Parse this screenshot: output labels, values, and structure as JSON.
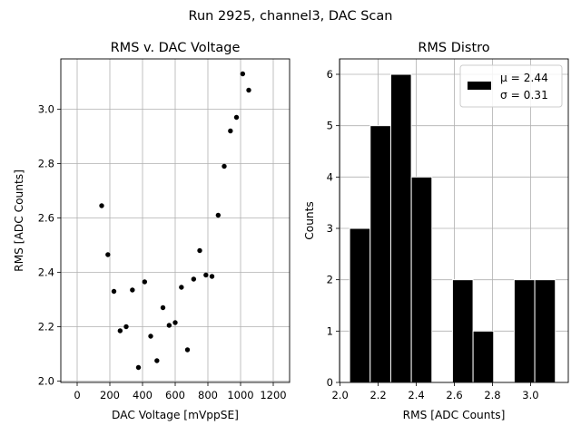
{
  "figure": {
    "suptitle": "Run 2925, channel3, DAC Scan"
  },
  "chart_data": [
    {
      "type": "scatter",
      "title": "RMS v. DAC Voltage",
      "xlabel": "DAC Voltage [mVppSE]",
      "ylabel": "RMS [ADC Counts]",
      "xlim": [
        -100,
        1300
      ],
      "ylim": [
        1.995,
        3.185
      ],
      "xticks": [
        0,
        200,
        400,
        600,
        800,
        1000,
        1200
      ],
      "yticks": [
        2.0,
        2.2,
        2.4,
        2.6,
        2.8,
        3.0
      ],
      "xtick_labels": [
        "0",
        "200",
        "400",
        "600",
        "800",
        "1000",
        "1200"
      ],
      "ytick_labels": [
        "2.0",
        "2.2",
        "2.4",
        "2.6",
        "2.8",
        "3.0"
      ],
      "grid": true,
      "marker_color": "#000000",
      "points": [
        {
          "x": 150,
          "y": 2.645
        },
        {
          "x": 188,
          "y": 2.465
        },
        {
          "x": 225,
          "y": 2.33
        },
        {
          "x": 263,
          "y": 2.185
        },
        {
          "x": 300,
          "y": 2.2
        },
        {
          "x": 338,
          "y": 2.335
        },
        {
          "x": 375,
          "y": 2.05
        },
        {
          "x": 413,
          "y": 2.365
        },
        {
          "x": 450,
          "y": 2.165
        },
        {
          "x": 488,
          "y": 2.075
        },
        {
          "x": 525,
          "y": 2.27
        },
        {
          "x": 563,
          "y": 2.205
        },
        {
          "x": 600,
          "y": 2.215
        },
        {
          "x": 638,
          "y": 2.345
        },
        {
          "x": 675,
          "y": 2.115
        },
        {
          "x": 713,
          "y": 2.375
        },
        {
          "x": 750,
          "y": 2.48
        },
        {
          "x": 788,
          "y": 2.39
        },
        {
          "x": 825,
          "y": 2.385
        },
        {
          "x": 863,
          "y": 2.61
        },
        {
          "x": 900,
          "y": 2.79
        },
        {
          "x": 938,
          "y": 2.92
        },
        {
          "x": 975,
          "y": 2.97
        },
        {
          "x": 1013,
          "y": 3.13
        },
        {
          "x": 1050,
          "y": 3.07
        }
      ]
    },
    {
      "type": "bar",
      "subtype": "histogram",
      "title": "RMS Distro",
      "xlabel": "RMS [ADC Counts]",
      "ylabel": "Counts",
      "xlim": [
        1.997,
        3.198
      ],
      "ylim": [
        0,
        6.3
      ],
      "xticks": [
        2.0,
        2.2,
        2.4,
        2.6,
        2.8,
        3.0
      ],
      "yticks": [
        0,
        1,
        2,
        3,
        4,
        5,
        6
      ],
      "xtick_labels": [
        "2.0",
        "2.2",
        "2.4",
        "2.6",
        "2.8",
        "3.0"
      ],
      "ytick_labels": [
        "0",
        "1",
        "2",
        "3",
        "4",
        "5",
        "6"
      ],
      "grid": true,
      "bar_color": "#000000",
      "edge_color": "#ffffff",
      "bin_edges": [
        2.05,
        2.158,
        2.266,
        2.374,
        2.482,
        2.59,
        2.698,
        2.806,
        2.914,
        3.022,
        3.13
      ],
      "counts": [
        3,
        5,
        6,
        4,
        0,
        2,
        1,
        0,
        2,
        2
      ],
      "legend": {
        "location": "upper right",
        "lines": [
          "μ = 2.44",
          "σ = 0.31"
        ]
      }
    }
  ]
}
